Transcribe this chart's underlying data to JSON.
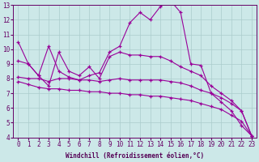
{
  "xlabel": "Windchill (Refroidissement éolien,°C)",
  "bg_color": "#cce8e8",
  "grid_color": "#aacccc",
  "line_color": "#990099",
  "xlim": [
    -0.5,
    23.5
  ],
  "ylim": [
    4,
    13
  ],
  "xticks": [
    0,
    1,
    2,
    3,
    4,
    5,
    6,
    7,
    8,
    9,
    10,
    11,
    12,
    13,
    14,
    15,
    16,
    17,
    18,
    19,
    20,
    21,
    22,
    23
  ],
  "yticks": [
    4,
    5,
    6,
    7,
    8,
    9,
    10,
    11,
    12,
    13
  ],
  "line1_x": [
    0,
    1,
    2,
    3,
    4,
    5,
    6,
    7,
    8,
    9,
    10,
    11,
    12,
    13,
    14,
    15,
    16,
    17,
    18,
    19,
    20,
    21,
    22,
    23
  ],
  "line1_y": [
    10.5,
    9.0,
    8.2,
    10.2,
    8.5,
    8.1,
    7.9,
    8.2,
    8.4,
    9.8,
    10.2,
    11.8,
    12.5,
    12.0,
    12.9,
    13.3,
    12.5,
    9.0,
    8.9,
    7.0,
    6.4,
    5.8,
    4.8,
    4.1
  ],
  "line2_x": [
    0,
    1,
    2,
    3,
    4,
    5,
    6,
    7,
    8,
    9,
    10,
    11,
    12,
    13,
    14,
    15,
    16,
    17,
    18,
    19,
    20,
    21,
    22,
    23
  ],
  "line2_y": [
    9.2,
    9.0,
    8.2,
    7.5,
    9.8,
    8.5,
    8.2,
    8.8,
    8.0,
    9.5,
    9.8,
    9.6,
    9.6,
    9.5,
    9.5,
    9.2,
    8.8,
    8.5,
    8.2,
    7.5,
    7.0,
    6.5,
    5.8,
    4.1
  ],
  "line3_x": [
    0,
    1,
    2,
    3,
    4,
    5,
    6,
    7,
    8,
    9,
    10,
    11,
    12,
    13,
    14,
    15,
    16,
    17,
    18,
    19,
    20,
    21,
    22,
    23
  ],
  "line3_y": [
    8.1,
    8.0,
    8.0,
    7.8,
    8.0,
    8.0,
    7.9,
    7.9,
    7.8,
    7.9,
    8.0,
    7.9,
    7.9,
    7.9,
    7.9,
    7.8,
    7.7,
    7.5,
    7.2,
    7.0,
    6.7,
    6.3,
    5.8,
    4.1
  ],
  "line4_x": [
    0,
    1,
    2,
    3,
    4,
    5,
    6,
    7,
    8,
    9,
    10,
    11,
    12,
    13,
    14,
    15,
    16,
    17,
    18,
    19,
    20,
    21,
    22,
    23
  ],
  "line4_y": [
    7.8,
    7.6,
    7.4,
    7.3,
    7.3,
    7.2,
    7.2,
    7.1,
    7.1,
    7.0,
    7.0,
    6.9,
    6.9,
    6.8,
    6.8,
    6.7,
    6.6,
    6.5,
    6.3,
    6.1,
    5.9,
    5.5,
    5.1,
    4.1
  ]
}
